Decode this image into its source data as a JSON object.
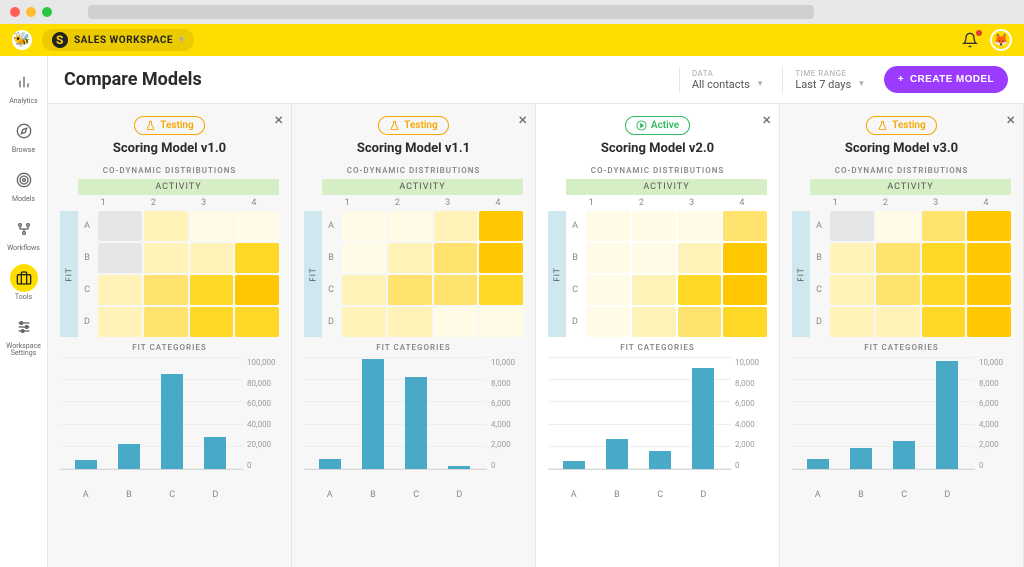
{
  "workspace": {
    "label": "SALES WORKSPACE"
  },
  "sidebar": {
    "items": [
      {
        "label": "Analytics",
        "icon": "bar-chart-icon"
      },
      {
        "label": "Browse",
        "icon": "compass-icon"
      },
      {
        "label": "Models",
        "icon": "target-icon"
      },
      {
        "label": "Workflows",
        "icon": "flow-icon"
      },
      {
        "label": "Tools",
        "icon": "briefcase-icon"
      },
      {
        "label": "Workspace Settings",
        "icon": "sliders-icon"
      }
    ],
    "active_index": 4
  },
  "page": {
    "title": "Compare Models",
    "filters": {
      "data_label": "DATA",
      "data_value": "All contacts",
      "time_label": "TIME RANGE",
      "time_value": "Last 7 days"
    },
    "create_button": "CREATE MODEL"
  },
  "statuses": {
    "testing_label": "Testing",
    "active_label": "Active"
  },
  "section_labels": {
    "codynamic": "CO-DYNAMIC DISTRIBUTIONS",
    "activity": "ACTIVITY",
    "fit": "FIT",
    "fit_categories": "FIT CATEGORIES"
  },
  "heatmap_common": {
    "cols": [
      "1",
      "2",
      "3",
      "4"
    ],
    "rows": [
      "A",
      "B",
      "C",
      "D"
    ]
  },
  "colors": {
    "bar": "#49aac8",
    "accent_yellow": "#ffdd00",
    "hm_palette": [
      "#e6e6e6",
      "#fffbe6",
      "#fff2b8",
      "#ffe36e",
      "#ffd727",
      "#ffc800"
    ]
  },
  "models": [
    {
      "title": "Scoring Model v1.0",
      "status": "testing",
      "heatmap": [
        [
          0,
          2,
          1,
          1
        ],
        [
          0,
          2,
          2,
          4
        ],
        [
          2,
          3,
          4,
          5
        ],
        [
          2,
          3,
          4,
          4
        ]
      ],
      "bar_chart": {
        "categories": [
          "A",
          "B",
          "C",
          "D"
        ],
        "values": [
          8000,
          22000,
          85000,
          29000
        ],
        "ymax": 100000,
        "yticks": [
          "100,000",
          "80,000",
          "60,000",
          "40,000",
          "20,000",
          "0"
        ]
      }
    },
    {
      "title": "Scoring Model v1.1",
      "status": "testing",
      "heatmap": [
        [
          1,
          1,
          2,
          5
        ],
        [
          1,
          2,
          3,
          5
        ],
        [
          2,
          3,
          3,
          4
        ],
        [
          2,
          2,
          1,
          1
        ]
      ],
      "bar_chart": {
        "categories": [
          "A",
          "B",
          "C",
          "D"
        ],
        "values": [
          900,
          9800,
          8200,
          300
        ],
        "ymax": 10000,
        "yticks": [
          "10,000",
          "8,000",
          "6,000",
          "4,000",
          "2,000",
          "0"
        ]
      }
    },
    {
      "title": "Scoring Model v2.0",
      "status": "active",
      "heatmap": [
        [
          1,
          1,
          1,
          3
        ],
        [
          1,
          1,
          2,
          5
        ],
        [
          1,
          2,
          4,
          5
        ],
        [
          1,
          2,
          3,
          4
        ]
      ],
      "bar_chart": {
        "categories": [
          "A",
          "B",
          "C",
          "D"
        ],
        "values": [
          700,
          2700,
          1600,
          9000
        ],
        "ymax": 10000,
        "yticks": [
          "10,000",
          "8,000",
          "6,000",
          "4,000",
          "2,000",
          "0"
        ]
      }
    },
    {
      "title": "Scoring Model v3.0",
      "status": "testing",
      "heatmap": [
        [
          0,
          1,
          3,
          5
        ],
        [
          2,
          3,
          4,
          5
        ],
        [
          2,
          3,
          4,
          5
        ],
        [
          2,
          2,
          4,
          5
        ]
      ],
      "bar_chart": {
        "categories": [
          "A",
          "B",
          "C",
          "D"
        ],
        "values": [
          900,
          1900,
          2500,
          9600
        ],
        "ymax": 10000,
        "yticks": [
          "10,000",
          "8,000",
          "6,000",
          "4,000",
          "2,000",
          "0"
        ]
      }
    }
  ]
}
